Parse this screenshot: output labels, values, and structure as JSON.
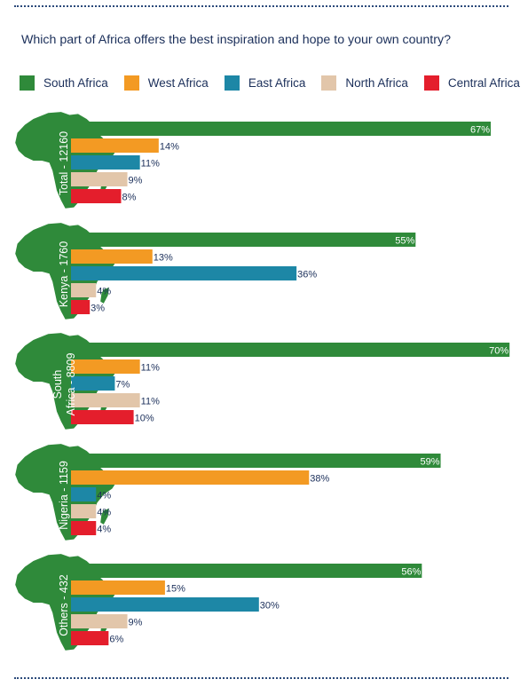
{
  "question": "Which part of Africa offers the best inspiration and hope to your own country?",
  "colors": {
    "south": "#2f8a3a",
    "west": "#f39a23",
    "east": "#1d87a6",
    "north": "#e2c6aa",
    "central": "#e41e2c",
    "map": "#2f8a3a"
  },
  "legend": [
    {
      "key": "south",
      "label": "South Africa",
      "color": "#2f8a3a"
    },
    {
      "key": "west",
      "label": "West Africa",
      "color": "#f39a23"
    },
    {
      "key": "east",
      "label": "East Africa",
      "color": "#1d87a6"
    },
    {
      "key": "north",
      "label": "North Africa",
      "color": "#e2c6aa"
    },
    {
      "key": "central",
      "label": "Central Africa",
      "color": "#e41e2c"
    }
  ],
  "chart_data": {
    "type": "bar",
    "orientation": "horizontal",
    "title": "Which part of Africa offers the best inspiration and hope to your own country?",
    "series_names": [
      "South Africa",
      "West Africa",
      "East Africa",
      "North Africa",
      "Central Africa"
    ],
    "groups": [
      {
        "label": "Total - 12160",
        "values": [
          67,
          14,
          11,
          9,
          8
        ],
        "labels": [
          "67%",
          "14%",
          "11%",
          "9%",
          "8%"
        ]
      },
      {
        "label": "Kenya - 1760",
        "values": [
          55,
          13,
          36,
          4,
          3
        ],
        "labels": [
          "55%",
          "13%",
          "36%",
          "4%",
          "3%"
        ]
      },
      {
        "label": "South Africa - 8809",
        "label_lines": [
          "South",
          "Africa - 8809"
        ],
        "values": [
          70,
          11,
          7,
          11,
          10
        ],
        "labels": [
          "70%",
          "11%",
          "7%",
          "11%",
          "10%"
        ]
      },
      {
        "label": "Nigeria - 1159",
        "values": [
          59,
          38,
          4,
          4,
          4
        ],
        "labels": [
          "59%",
          "38%",
          "4%",
          "4%",
          "4%"
        ]
      },
      {
        "label": "Others - 432",
        "values": [
          56,
          15,
          30,
          9,
          6
        ],
        "labels": [
          "56%",
          "15%",
          "30%",
          "9%",
          "6%"
        ]
      }
    ],
    "xlim": [
      0,
      100
    ]
  }
}
